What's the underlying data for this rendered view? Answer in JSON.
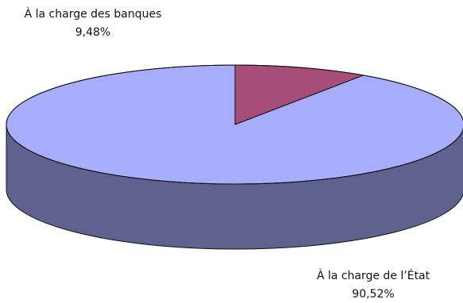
{
  "chart_data": {
    "type": "pie",
    "style": "3d",
    "title": "",
    "slices": [
      {
        "label": "À la charge des banques",
        "value_text": "9,48%",
        "value": 9.48,
        "top_color": "#a64d7a",
        "side_color": "#6b2e4f"
      },
      {
        "label": "À la charge de l’État",
        "value_text": "90,52%",
        "value": 90.52,
        "top_color": "#a7adfb",
        "side_color": "#5f628e"
      }
    ]
  }
}
